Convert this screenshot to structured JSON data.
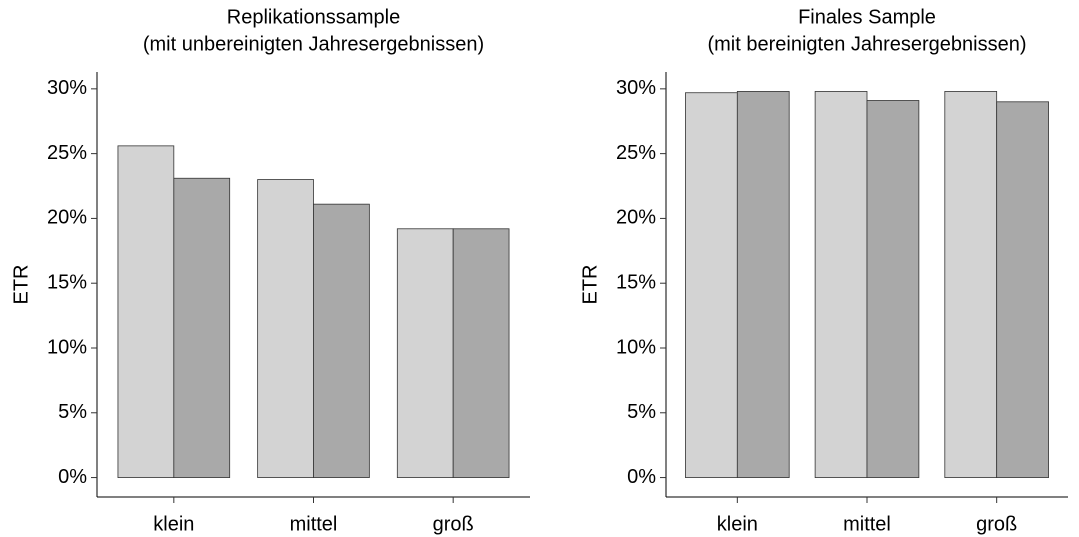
{
  "chart_data": [
    {
      "type": "bar",
      "title": [
        "Replikationssample",
        "(mit unbereinigten Jahresergebnissen)"
      ],
      "ylabel": "ETR",
      "categories": [
        "klein",
        "mittel",
        "groß"
      ],
      "series": [
        {
          "color": "#d3d3d3",
          "values": [
            25.6,
            23.0,
            19.2
          ]
        },
        {
          "color": "#a9a9a9",
          "values": [
            23.1,
            21.1,
            19.2
          ]
        }
      ],
      "ylim": [
        -1.5,
        31.3
      ],
      "yticks": [
        {
          "value": 0,
          "label": "0%"
        },
        {
          "value": 5,
          "label": "5%"
        },
        {
          "value": 10,
          "label": "10%"
        },
        {
          "value": 15,
          "label": "15%"
        },
        {
          "value": 20,
          "label": "20%"
        },
        {
          "value": 25,
          "label": "25%"
        },
        {
          "value": 30,
          "label": "30%"
        }
      ]
    },
    {
      "type": "bar",
      "title": [
        "Finales Sample",
        "(mit bereinigten Jahresergebnissen)"
      ],
      "ylabel": "ETR",
      "categories": [
        "klein",
        "mittel",
        "groß"
      ],
      "series": [
        {
          "color": "#d3d3d3",
          "values": [
            29.7,
            29.8,
            29.8
          ]
        },
        {
          "color": "#a9a9a9",
          "values": [
            29.8,
            29.1,
            29.0
          ]
        }
      ],
      "ylim": [
        -1.5,
        31.3
      ],
      "yticks": [
        {
          "value": 0,
          "label": "0%"
        },
        {
          "value": 5,
          "label": "5%"
        },
        {
          "value": 10,
          "label": "10%"
        },
        {
          "value": 15,
          "label": "15%"
        },
        {
          "value": 20,
          "label": "20%"
        },
        {
          "value": 25,
          "label": "25%"
        },
        {
          "value": 30,
          "label": "30%"
        }
      ]
    }
  ]
}
